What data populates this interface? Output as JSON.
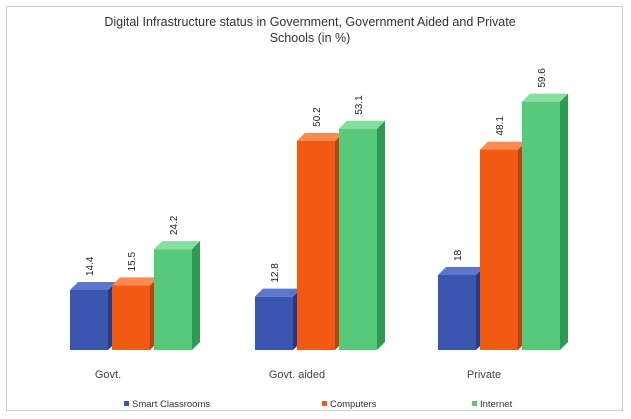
{
  "chart_data": {
    "type": "bar",
    "title": "Digital Infrastructure status in Government, Government Aided and Private Schools (in %)",
    "categories": [
      "Govt.",
      "Govt. aided",
      "Private"
    ],
    "series": [
      {
        "name": "Smart Classrooms",
        "values": [
          14.4,
          12.8,
          18
        ],
        "color": "#3a56b0",
        "side_color": "#24398a",
        "top_color": "#5b76cc"
      },
      {
        "name": "Computers",
        "values": [
          15.5,
          50.2,
          48.1
        ],
        "color": "#f25a14",
        "side_color": "#c2410a",
        "top_color": "#ff8a4d"
      },
      {
        "name": "Internet",
        "values": [
          24.2,
          53.1,
          59.6
        ],
        "color": "#57c97a",
        "side_color": "#2e9a52",
        "top_color": "#85e09f"
      }
    ],
    "ylim": [
      0,
      60
    ],
    "grid": false,
    "legend": "bottom"
  }
}
